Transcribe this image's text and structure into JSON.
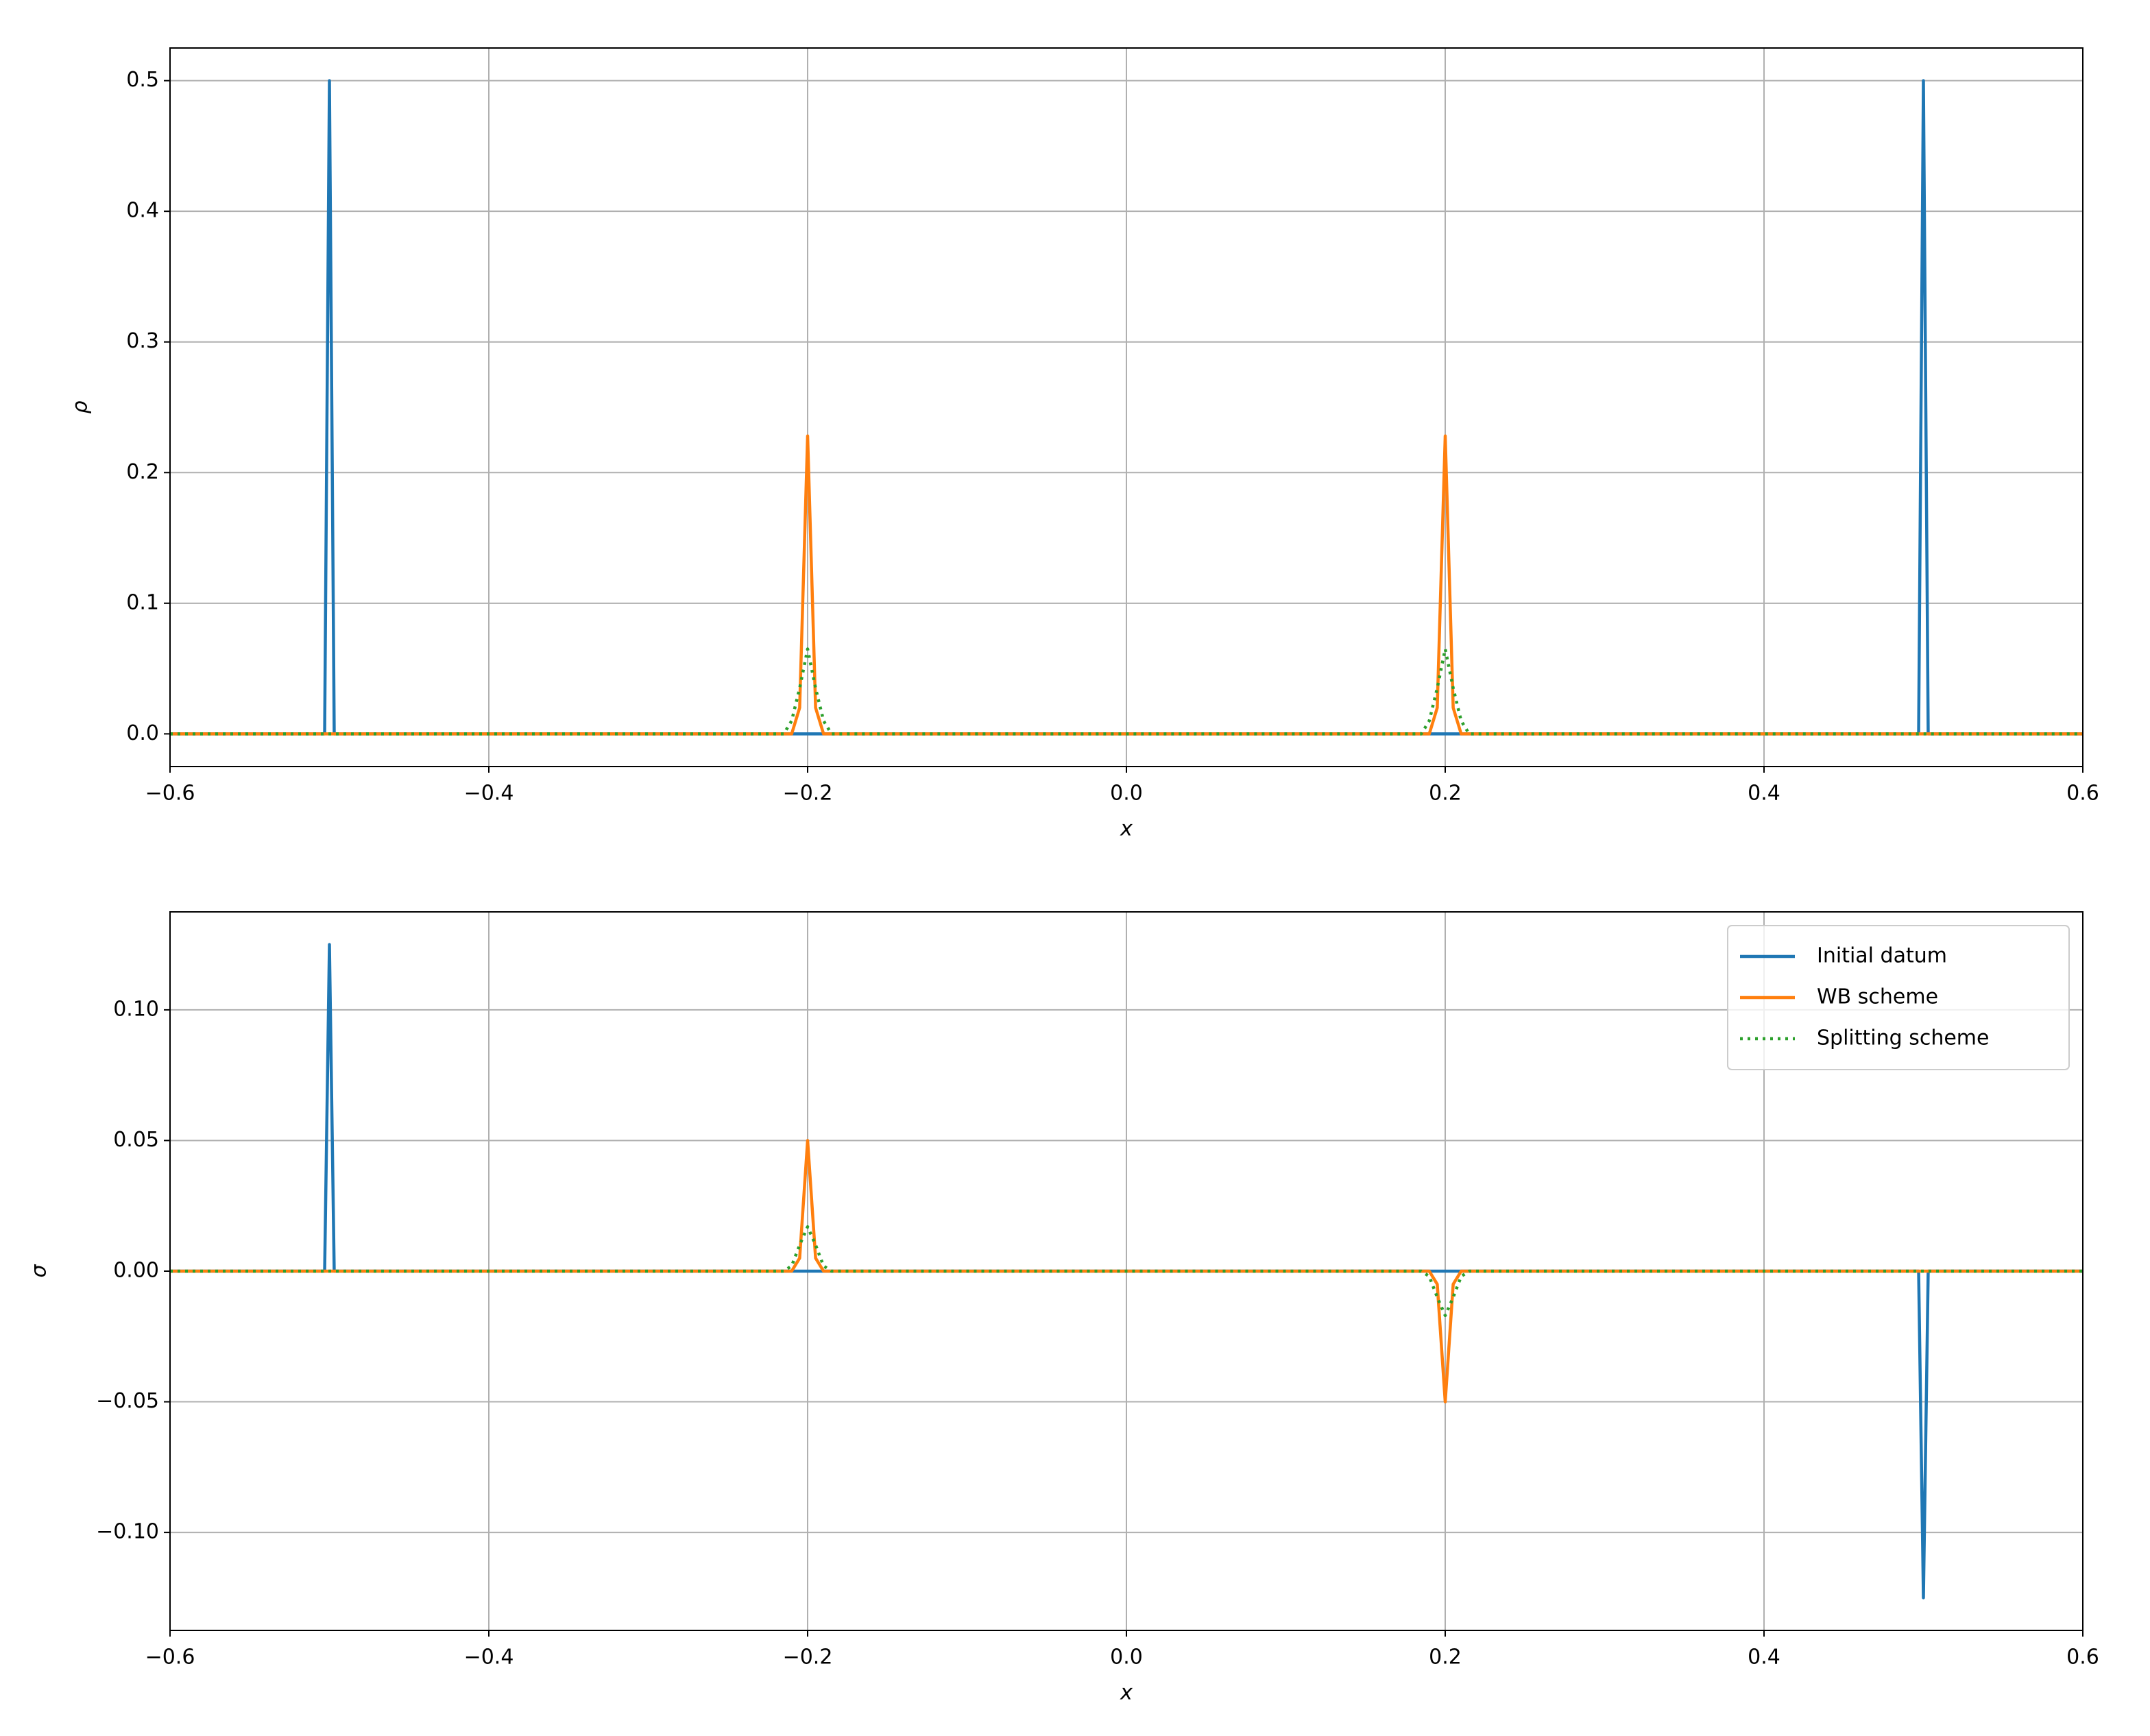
{
  "chart_data": [
    {
      "type": "line",
      "xlabel": "x",
      "ylabel": "ρ",
      "x": [
        -0.6,
        -0.503,
        -0.5,
        -0.497,
        -0.215,
        -0.21,
        -0.205,
        -0.2,
        -0.195,
        -0.19,
        -0.185,
        0.185,
        0.19,
        0.195,
        0.2,
        0.205,
        0.21,
        0.215,
        0.497,
        0.5,
        0.503,
        0.6
      ],
      "series": [
        {
          "color": "#1f77b4",
          "linestyle": "solid",
          "values": [
            0,
            0,
            0.5,
            0,
            0,
            0,
            0,
            0,
            0,
            0,
            0,
            0,
            0,
            0,
            0,
            0,
            0,
            0,
            0,
            0.5,
            0,
            0
          ]
        },
        {
          "color": "#ff7f0e",
          "linestyle": "solid",
          "values": [
            0,
            0,
            0,
            0,
            0,
            0,
            0.02,
            0.228,
            0.02,
            0,
            0,
            0,
            0,
            0.02,
            0.228,
            0.02,
            0,
            0,
            0,
            0,
            0,
            0
          ]
        },
        {
          "color": "#2ca02c",
          "linestyle": "dotted",
          "values": [
            0,
            0,
            0,
            0,
            0,
            0.01,
            0.035,
            0.065,
            0.035,
            0.01,
            0,
            0,
            0.01,
            0.035,
            0.065,
            0.035,
            0.01,
            0,
            0,
            0,
            0,
            0
          ]
        }
      ],
      "xlim": [
        -0.6,
        0.6
      ],
      "xticks": [
        {
          "value": -0.6,
          "label": "−0.6"
        },
        {
          "value": -0.4,
          "label": "−0.4"
        },
        {
          "value": -0.2,
          "label": "−0.2"
        },
        {
          "value": 0,
          "label": "0.0"
        },
        0.2,
        0.4,
        0.6
      ],
      "ylim": [
        -0.025,
        0.525
      ],
      "yticks": [
        {
          "value": 0,
          "label": "0.0"
        },
        0.1,
        0.2,
        0.3,
        0.4,
        0.5
      ],
      "grid": true
    },
    {
      "type": "line",
      "xlabel": "x",
      "ylabel": "σ",
      "x": [
        -0.6,
        -0.503,
        -0.5,
        -0.497,
        -0.215,
        -0.21,
        -0.205,
        -0.2,
        -0.195,
        -0.19,
        -0.185,
        0.185,
        0.19,
        0.195,
        0.2,
        0.205,
        0.21,
        0.215,
        0.497,
        0.5,
        0.503,
        0.6
      ],
      "series": [
        {
          "name": "Initial datum",
          "color": "#1f77b4",
          "linestyle": "solid",
          "values": [
            0,
            0,
            0.125,
            0,
            0,
            0,
            0,
            0,
            0,
            0,
            0,
            0,
            0,
            0,
            0,
            0,
            0,
            0,
            0,
            -0.125,
            0,
            0
          ]
        },
        {
          "name": "WB scheme",
          "color": "#ff7f0e",
          "linestyle": "solid",
          "values": [
            0,
            0,
            0,
            0,
            0,
            0,
            0.005,
            0.05,
            0.005,
            0,
            0,
            0,
            0,
            -0.005,
            -0.05,
            -0.005,
            0,
            0,
            0,
            0,
            0,
            0
          ]
        },
        {
          "name": "Splitting scheme",
          "color": "#2ca02c",
          "linestyle": "dotted",
          "values": [
            0,
            0,
            0,
            0,
            0,
            0.002,
            0.01,
            0.017,
            0.01,
            0.002,
            0,
            0,
            -0.002,
            -0.01,
            -0.017,
            -0.01,
            -0.002,
            0,
            0,
            0,
            0,
            0
          ]
        }
      ],
      "xlim": [
        -0.6,
        0.6
      ],
      "xticks": [
        {
          "value": -0.6,
          "label": "−0.6"
        },
        {
          "value": -0.4,
          "label": "−0.4"
        },
        {
          "value": -0.2,
          "label": "−0.2"
        },
        {
          "value": 0,
          "label": "0.0"
        },
        0.2,
        0.4,
        0.6
      ],
      "ylim": [
        -0.1375,
        0.1375
      ],
      "yticks": [
        {
          "value": -0.1,
          "label": "−0.10"
        },
        {
          "value": -0.05,
          "label": "−0.05"
        },
        {
          "value": 0,
          "label": "0.00"
        },
        {
          "value": 0.05,
          "label": "0.05"
        },
        {
          "value": 0.1,
          "label": "0.10"
        }
      ],
      "grid": true,
      "legend": "upper right"
    }
  ]
}
